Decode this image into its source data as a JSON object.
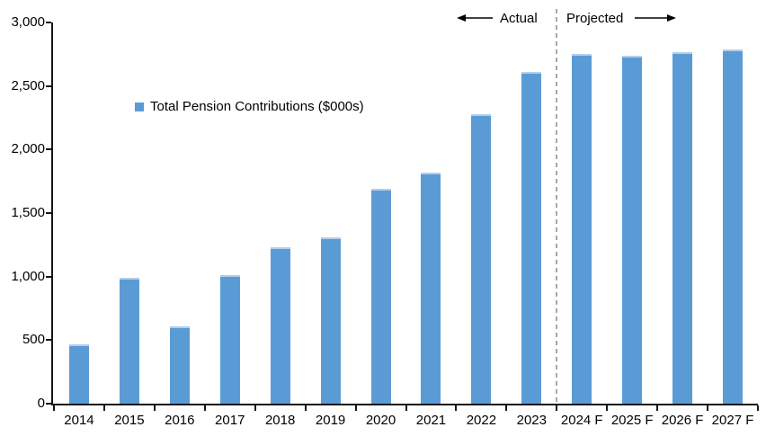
{
  "chart_data": {
    "type": "bar",
    "title": "",
    "xlabel": "",
    "ylabel": "",
    "categories": [
      "2014",
      "2015",
      "2016",
      "2017",
      "2018",
      "2019",
      "2020",
      "2021",
      "2022",
      "2023",
      "2024 F",
      "2025 F",
      "2026 F",
      "2027 F"
    ],
    "values": [
      470,
      990,
      610,
      1010,
      1230,
      1310,
      1690,
      1820,
      2280,
      2610,
      2750,
      2740,
      2765,
      2790
    ],
    "series_name": "Total Pension Contributions ($000s)",
    "ylim": [
      0,
      3000
    ],
    "ytick_step": 500,
    "ytick_labels": [
      "0",
      "500",
      "1,000",
      "1,500",
      "2,000",
      "2,500",
      "3,000"
    ],
    "grid": false,
    "legend_position": "inside-upper-left",
    "bar_color": "#5B9BD5",
    "bar_top_edge_color": "#B3CFEC",
    "axis_color": "#161616",
    "annotations": {
      "actual_label": "Actual",
      "projected_label": "Projected",
      "divider_after_category": "2023",
      "divider_after_category_index": 9,
      "divider_style": "dashed",
      "divider_color": "#A6A6A6"
    }
  }
}
